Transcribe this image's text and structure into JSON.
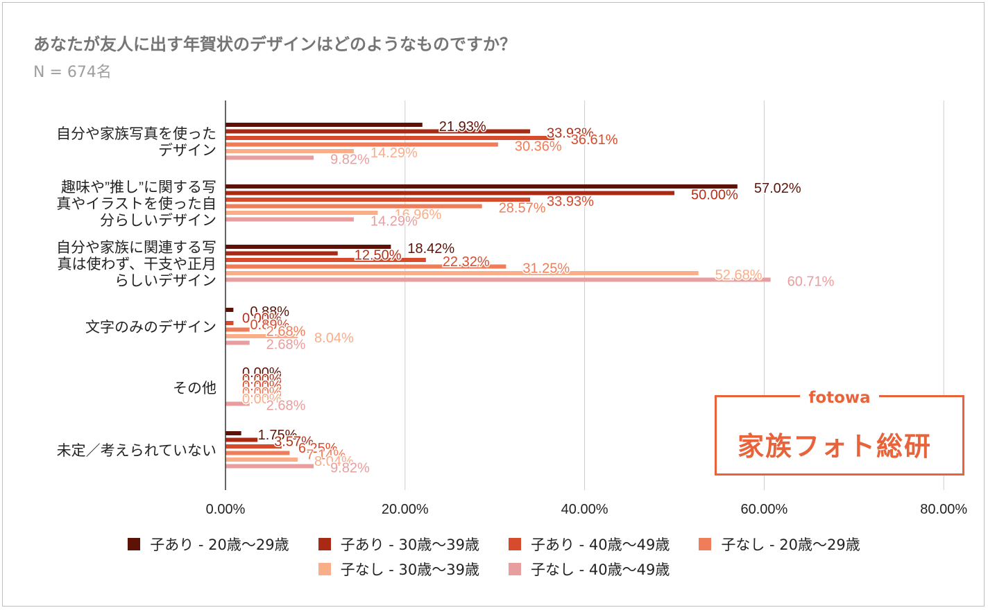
{
  "title": "あなたが友人に出す年賀状のデザインはどのようなものですか？",
  "subtitle": "N = 674名",
  "logo": {
    "brand": "fotowa",
    "name": "家族フォト総研"
  },
  "colors": [
    "#5c1206",
    "#a82a14",
    "#d64b2c",
    "#f07d59",
    "#f9ad88",
    "#e89e9e"
  ],
  "chart_data": {
    "type": "bar",
    "orientation": "horizontal",
    "title": "あなたが友人に出す年賀状のデザインはどのようなものですか？",
    "subtitle": "N = 674名",
    "xlim": [
      0,
      80
    ],
    "xticks": [
      0,
      20,
      40,
      60,
      80
    ],
    "xtick_labels": [
      "0.00%",
      "20.00%",
      "40.00%",
      "60.00%",
      "80.00%"
    ],
    "categories": [
      [
        "自分や家族写真を使った",
        "デザイン"
      ],
      [
        "趣味や”推し”に関する写",
        "真やイラストを使った自",
        "分らしいデザイン"
      ],
      [
        "自分や家族に関連する写",
        "真は使わず、干支や正月",
        "らしいデザイン"
      ],
      [
        "文字のみのデザイン"
      ],
      [
        "その他"
      ],
      [
        "未定／考えられていない"
      ]
    ],
    "series": [
      {
        "name": "子あり - 20歳〜29歳",
        "values": [
          21.93,
          57.02,
          18.42,
          0.88,
          0.0,
          1.75
        ]
      },
      {
        "name": "子あり - 30歳〜39歳",
        "values": [
          33.93,
          50.0,
          12.5,
          0.0,
          0.0,
          3.57
        ]
      },
      {
        "name": "子あり - 40歳〜49歳",
        "values": [
          36.61,
          33.93,
          22.32,
          0.89,
          0.0,
          6.25
        ]
      },
      {
        "name": "子なし - 20歳〜29歳",
        "values": [
          30.36,
          28.57,
          31.25,
          2.68,
          0.0,
          7.14
        ]
      },
      {
        "name": "子なし - 30歳〜39歳",
        "values": [
          14.29,
          16.96,
          52.68,
          8.04,
          0.0,
          8.04
        ]
      },
      {
        "name": "子なし - 40歳〜49歳",
        "values": [
          9.82,
          14.29,
          60.71,
          2.68,
          2.68,
          9.82
        ]
      }
    ],
    "legend_position": "bottom",
    "grid": true
  }
}
